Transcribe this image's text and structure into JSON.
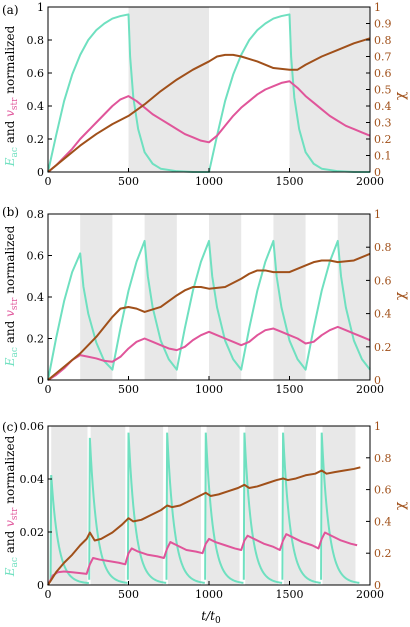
{
  "figure": {
    "xlabel": "t/t",
    "xlabel_sub": "0",
    "left_ylabel": {
      "e_main": "E",
      "e_sub": "ac",
      "and": " and ",
      "v_main": "v",
      "v_sub": "str",
      "normalized": " normalized"
    },
    "right_ylabel": "χ"
  },
  "chart_data": [
    {
      "type": "line",
      "panel_label": "(a)",
      "xlim": [
        0,
        2000
      ],
      "x_ticks": [
        0,
        500,
        1000,
        1500,
        2000
      ],
      "left_ylim": [
        0,
        1
      ],
      "left_ticks": [
        "0",
        "0.2",
        "0.4",
        "0.6",
        "0.8",
        "1"
      ],
      "right_ylim": [
        0,
        1
      ],
      "right_ticks": [
        "0",
        "0.1",
        "0.2",
        "0.3",
        "0.4",
        "0.5",
        "0.6",
        "0.7",
        "0.8",
        "0.9",
        "1"
      ],
      "shaded_intervals": [
        [
          500,
          1000
        ],
        [
          1500,
          2000
        ]
      ],
      "colors": {
        "E_ac": "#6fe0c0",
        "v_str": "#e0559a",
        "chi": "#a0501a",
        "shade": "#e8e8e8"
      },
      "series": [
        {
          "key": "E_ac",
          "x": [
            0,
            50,
            100,
            150,
            200,
            250,
            300,
            350,
            400,
            450,
            500,
            510,
            530,
            560,
            600,
            650,
            700,
            800,
            900,
            1000,
            1050,
            1100,
            1150,
            1200,
            1250,
            1300,
            1350,
            1400,
            1450,
            1500,
            1510,
            1530,
            1560,
            1600,
            1650,
            1700,
            1800,
            1900,
            2000
          ],
          "y": [
            0,
            0.22,
            0.43,
            0.59,
            0.71,
            0.8,
            0.86,
            0.9,
            0.93,
            0.945,
            0.955,
            0.7,
            0.45,
            0.26,
            0.12,
            0.05,
            0.02,
            0.005,
            0,
            0,
            0.22,
            0.43,
            0.59,
            0.71,
            0.8,
            0.86,
            0.9,
            0.93,
            0.945,
            0.955,
            0.7,
            0.45,
            0.26,
            0.12,
            0.05,
            0.02,
            0.005,
            0,
            0
          ]
        },
        {
          "key": "v_str",
          "x": [
            0,
            50,
            100,
            150,
            200,
            250,
            300,
            350,
            400,
            450,
            500,
            550,
            600,
            650,
            700,
            750,
            800,
            850,
            900,
            950,
            1000,
            1050,
            1100,
            1150,
            1200,
            1250,
            1300,
            1350,
            1400,
            1450,
            1500,
            1550,
            1600,
            1650,
            1700,
            1750,
            1800,
            1850,
            1900,
            1950,
            2000
          ],
          "y": [
            0,
            0.04,
            0.09,
            0.14,
            0.2,
            0.25,
            0.3,
            0.35,
            0.4,
            0.44,
            0.46,
            0.43,
            0.39,
            0.35,
            0.32,
            0.29,
            0.26,
            0.23,
            0.21,
            0.19,
            0.18,
            0.22,
            0.28,
            0.34,
            0.39,
            0.43,
            0.47,
            0.5,
            0.52,
            0.54,
            0.55,
            0.51,
            0.46,
            0.42,
            0.38,
            0.34,
            0.31,
            0.28,
            0.26,
            0.24,
            0.22
          ]
        },
        {
          "key": "chi",
          "x": [
            0,
            100,
            200,
            300,
            400,
            500,
            600,
            700,
            800,
            900,
            1000,
            1050,
            1100,
            1150,
            1200,
            1300,
            1400,
            1500,
            1550,
            1600,
            1700,
            1800,
            1900,
            2000
          ],
          "y": [
            0,
            0.08,
            0.16,
            0.23,
            0.29,
            0.34,
            0.41,
            0.49,
            0.56,
            0.62,
            0.67,
            0.7,
            0.71,
            0.71,
            0.7,
            0.67,
            0.63,
            0.62,
            0.62,
            0.65,
            0.7,
            0.74,
            0.78,
            0.81
          ]
        }
      ]
    },
    {
      "type": "line",
      "panel_label": "(b)",
      "xlim": [
        0,
        2000
      ],
      "x_ticks": [
        0,
        500,
        1000,
        1500,
        2000
      ],
      "left_ylim": [
        0,
        0.8
      ],
      "left_ticks": [
        "0",
        "0.2",
        "0.4",
        "0.6",
        "0.8"
      ],
      "right_ylim": [
        0,
        1
      ],
      "right_ticks": [
        "0",
        "0.2",
        "0.4",
        "0.6",
        "0.8",
        "1"
      ],
      "shaded_intervals": [
        [
          200,
          400
        ],
        [
          600,
          800
        ],
        [
          1000,
          1200
        ],
        [
          1400,
          1600
        ],
        [
          1800,
          2000
        ]
      ],
      "colors": {
        "E_ac": "#6fe0c0",
        "v_str": "#e0559a",
        "chi": "#a0501a",
        "shade": "#e8e8e8"
      },
      "series": [
        {
          "key": "E_ac",
          "x": [
            0,
            50,
            100,
            150,
            200,
            220,
            250,
            300,
            350,
            400,
            450,
            500,
            550,
            600,
            620,
            650,
            700,
            750,
            800,
            850,
            900,
            950,
            1000,
            1020,
            1050,
            1100,
            1150,
            1200,
            1250,
            1300,
            1350,
            1400,
            1420,
            1450,
            1500,
            1550,
            1600,
            1650,
            1700,
            1750,
            1800,
            1820,
            1850,
            1900,
            1950,
            2000
          ],
          "y": [
            0,
            0.2,
            0.38,
            0.52,
            0.61,
            0.45,
            0.32,
            0.18,
            0.09,
            0.05,
            0.25,
            0.43,
            0.57,
            0.67,
            0.5,
            0.35,
            0.19,
            0.1,
            0.05,
            0.25,
            0.43,
            0.57,
            0.67,
            0.5,
            0.35,
            0.19,
            0.1,
            0.05,
            0.25,
            0.43,
            0.57,
            0.67,
            0.5,
            0.35,
            0.19,
            0.1,
            0.05,
            0.25,
            0.43,
            0.57,
            0.67,
            0.5,
            0.35,
            0.19,
            0.1,
            0.05
          ]
        },
        {
          "key": "v_str",
          "x": [
            0,
            50,
            100,
            150,
            200,
            250,
            300,
            350,
            400,
            450,
            500,
            550,
            600,
            650,
            700,
            750,
            800,
            850,
            900,
            950,
            1000,
            1050,
            1100,
            1150,
            1200,
            1250,
            1300,
            1350,
            1400,
            1450,
            1500,
            1550,
            1600,
            1650,
            1700,
            1750,
            1800,
            1850,
            1900,
            1950,
            2000
          ],
          "y": [
            0,
            0.03,
            0.07,
            0.12,
            0.15,
            0.14,
            0.13,
            0.115,
            0.11,
            0.14,
            0.19,
            0.23,
            0.25,
            0.23,
            0.21,
            0.19,
            0.18,
            0.2,
            0.24,
            0.27,
            0.29,
            0.27,
            0.25,
            0.23,
            0.21,
            0.23,
            0.27,
            0.3,
            0.31,
            0.29,
            0.27,
            0.25,
            0.22,
            0.23,
            0.27,
            0.3,
            0.32,
            0.3,
            0.28,
            0.26,
            0.24
          ]
        },
        {
          "key": "chi",
          "x": [
            0,
            100,
            200,
            300,
            400,
            450,
            500,
            550,
            600,
            700,
            800,
            850,
            900,
            950,
            1000,
            1100,
            1200,
            1250,
            1300,
            1350,
            1400,
            1500,
            1600,
            1650,
            1700,
            1750,
            1800,
            1900,
            2000
          ],
          "y": [
            0,
            0.08,
            0.16,
            0.26,
            0.38,
            0.43,
            0.44,
            0.43,
            0.41,
            0.44,
            0.51,
            0.54,
            0.56,
            0.56,
            0.55,
            0.56,
            0.61,
            0.64,
            0.66,
            0.66,
            0.65,
            0.65,
            0.69,
            0.71,
            0.72,
            0.72,
            0.71,
            0.72,
            0.76
          ]
        }
      ]
    },
    {
      "type": "line",
      "panel_label": "(c)",
      "xlim": [
        0,
        2000
      ],
      "x_ticks": [
        0,
        500,
        1000,
        1500,
        2000
      ],
      "left_ylim": [
        0,
        0.06
      ],
      "left_ticks": [
        "0",
        "0.02",
        "0.04",
        "0.06"
      ],
      "right_ylim": [
        0,
        1
      ],
      "right_ticks": [
        "0",
        "0.2",
        "0.4",
        "0.6",
        "0.8",
        "1"
      ],
      "shaded_intervals": [
        [
          20,
          245
        ],
        [
          265,
          480
        ],
        [
          505,
          715
        ],
        [
          745,
          950
        ],
        [
          985,
          1190
        ],
        [
          1225,
          1430
        ],
        [
          1465,
          1665
        ],
        [
          1705,
          1910
        ]
      ],
      "colors": {
        "E_ac": "#6fe0c0",
        "v_str": "#e0559a",
        "chi": "#a0501a",
        "shade": "#e8e8e8"
      },
      "peaks_E_ac": [
        [
          20,
          0.041
        ],
        [
          260,
          0.055
        ],
        [
          500,
          0.057
        ],
        [
          740,
          0.057
        ],
        [
          980,
          0.057
        ],
        [
          1220,
          0.057
        ],
        [
          1460,
          0.057
        ],
        [
          1700,
          0.057
        ]
      ],
      "series": [
        {
          "key": "v_str",
          "x": [
            0,
            30,
            60,
            100,
            150,
            200,
            240,
            260,
            280,
            320,
            380,
            440,
            480,
            500,
            520,
            560,
            620,
            680,
            720,
            740,
            760,
            800,
            860,
            920,
            960,
            980,
            1000,
            1040,
            1100,
            1160,
            1200,
            1220,
            1240,
            1280,
            1340,
            1400,
            1440,
            1460,
            1480,
            1520,
            1580,
            1640,
            1680,
            1700,
            1720,
            1760,
            1820,
            1880,
            1920
          ],
          "y": [
            0,
            0.06,
            0.08,
            0.085,
            0.08,
            0.075,
            0.07,
            0.13,
            0.17,
            0.16,
            0.15,
            0.14,
            0.13,
            0.2,
            0.23,
            0.21,
            0.19,
            0.18,
            0.17,
            0.23,
            0.27,
            0.25,
            0.22,
            0.21,
            0.2,
            0.26,
            0.29,
            0.27,
            0.25,
            0.23,
            0.22,
            0.28,
            0.31,
            0.29,
            0.26,
            0.24,
            0.22,
            0.28,
            0.32,
            0.3,
            0.27,
            0.25,
            0.23,
            0.29,
            0.33,
            0.31,
            0.28,
            0.26,
            0.25
          ]
        },
        {
          "key": "chi",
          "x": [
            0,
            50,
            100,
            150,
            200,
            240,
            260,
            290,
            330,
            400,
            460,
            500,
            530,
            580,
            640,
            700,
            740,
            770,
            820,
            880,
            940,
            980,
            1010,
            1060,
            1120,
            1180,
            1220,
            1250,
            1300,
            1360,
            1420,
            1460,
            1490,
            1540,
            1600,
            1660,
            1700,
            1730,
            1780,
            1840,
            1900,
            1940
          ],
          "y": [
            0,
            0.08,
            0.14,
            0.19,
            0.25,
            0.29,
            0.33,
            0.28,
            0.29,
            0.33,
            0.38,
            0.42,
            0.4,
            0.41,
            0.44,
            0.47,
            0.5,
            0.49,
            0.5,
            0.53,
            0.56,
            0.58,
            0.56,
            0.57,
            0.59,
            0.61,
            0.63,
            0.61,
            0.62,
            0.64,
            0.66,
            0.67,
            0.66,
            0.67,
            0.69,
            0.7,
            0.72,
            0.7,
            0.71,
            0.72,
            0.73,
            0.74
          ]
        }
      ]
    }
  ]
}
